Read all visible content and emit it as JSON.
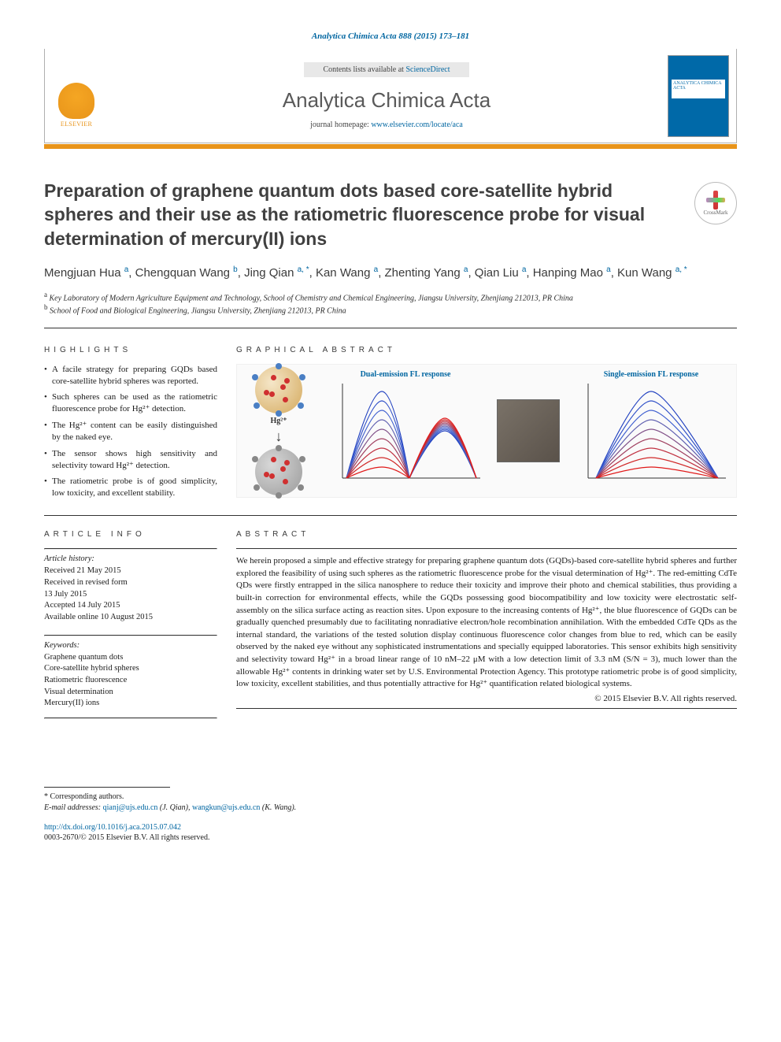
{
  "journal_ref": "Analytica Chimica Acta 888 (2015) 173–181",
  "header": {
    "contents_prefix": "Contents lists available at ",
    "contents_link": "ScienceDirect",
    "journal_name": "Analytica Chimica Acta",
    "homepage_prefix": "journal homepage: ",
    "homepage_link": "www.elsevier.com/locate/aca",
    "elsevier_label": "ELSEVIER",
    "cover_label": "ANALYTICA CHIMICA ACTA"
  },
  "crossmark": "CrossMark",
  "title": "Preparation of graphene quantum dots based core-satellite hybrid spheres and their use as the ratiometric fluorescence probe for visual determination of mercury(II) ions",
  "authors_html": "Mengjuan Hua <sup>a</sup>, Chengquan Wang <sup>b</sup>, Jing Qian <sup>a, *</sup>, Kan Wang <sup>a</sup>, Zhenting Yang <sup>a</sup>, Qian Liu <sup>a</sup>, Hanping Mao <sup>a</sup>, Kun Wang <sup>a, *</sup>",
  "affiliations": [
    {
      "sup": "a",
      "text": "Key Laboratory of Modern Agriculture Equipment and Technology, School of Chemistry and Chemical Engineering, Jiangsu University, Zhenjiang 212013, PR China"
    },
    {
      "sup": "b",
      "text": "School of Food and Biological Engineering, Jiangsu University, Zhenjiang 212013, PR China"
    }
  ],
  "labels": {
    "highlights": "HIGHLIGHTS",
    "graphical_abstract": "GRAPHICAL ABSTRACT",
    "article_info": "ARTICLE INFO",
    "abstract": "ABSTRACT"
  },
  "highlights": [
    "A facile strategy for preparing GQDs based core-satellite hybrid spheres was reported.",
    "Such spheres can be used as the ratiometric fluorescence probe for Hg²⁺ detection.",
    "The Hg²⁺ content can be easily distinguished by the naked eye.",
    "The sensor shows high sensitivity and selectivity toward Hg²⁺ detection.",
    "The ratiometric probe is of good simplicity, low toxicity, and excellent stability."
  ],
  "graphical_abstract": {
    "dual_title": "Dual-emission FL response",
    "single_title": "Single-emission FL response",
    "hg_label": "Hg²⁺",
    "dual_title_color": "#0066a1",
    "single_title_color": "#0066a1",
    "spectrum_colors": [
      "#2040c0",
      "#3050c8",
      "#4060d0",
      "#6060b0",
      "#805088",
      "#a04060",
      "#c03040",
      "#d02828",
      "#e01818"
    ],
    "axis_color": "#333333"
  },
  "article_info": {
    "history_label": "Article history:",
    "history": [
      "Received 21 May 2015",
      "Received in revised form",
      "13 July 2015",
      "Accepted 14 July 2015",
      "Available online 10 August 2015"
    ],
    "keywords_label": "Keywords:",
    "keywords": [
      "Graphene quantum dots",
      "Core-satellite hybrid spheres",
      "Ratiometric fluorescence",
      "Visual determination",
      "Mercury(II) ions"
    ]
  },
  "abstract": "We herein proposed a simple and effective strategy for preparing graphene quantum dots (GQDs)-based core-satellite hybrid spheres and further explored the feasibility of using such spheres as the ratiometric fluorescence probe for the visual determination of Hg²⁺. The red-emitting CdTe QDs were firstly entrapped in the silica nanosphere to reduce their toxicity and improve their photo and chemical stabilities, thus providing a built-in correction for environmental effects, while the GQDs possessing good biocompatibility and low toxicity were electrostatic self-assembly on the silica surface acting as reaction sites. Upon exposure to the increasing contents of Hg²⁺, the blue fluorescence of GQDs can be gradually quenched presumably due to facilitating nonradiative electron/hole recombination annihilation. With the embedded CdTe QDs as the internal standard, the variations of the tested solution display continuous fluorescence color changes from blue to red, which can be easily observed by the naked eye without any sophisticated instrumentations and specially equipped laboratories. This sensor exhibits high sensitivity and selectivity toward Hg²⁺ in a broad linear range of 10 nM–22 μM with a low detection limit of 3.3 nM (S/N = 3), much lower than the allowable Hg²⁺ contents in drinking water set by U.S. Environmental Protection Agency. This prototype ratiometric probe is of good simplicity, low toxicity, excellent stabilities, and thus potentially attractive for Hg²⁺ quantification related biological systems.",
  "copyright": "© 2015 Elsevier B.V. All rights reserved.",
  "footer": {
    "corr_label": "* Corresponding authors.",
    "email_label": "E-mail addresses: ",
    "emails": [
      {
        "addr": "qianj@ujs.edu.cn",
        "who": "(J. Qian)"
      },
      {
        "addr": "wangkun@ujs.edu.cn",
        "who": "(K. Wang)"
      }
    ],
    "doi": "http://dx.doi.org/10.1016/j.aca.2015.07.042",
    "issn": "0003-2670/© 2015 Elsevier B.V. All rights reserved."
  }
}
